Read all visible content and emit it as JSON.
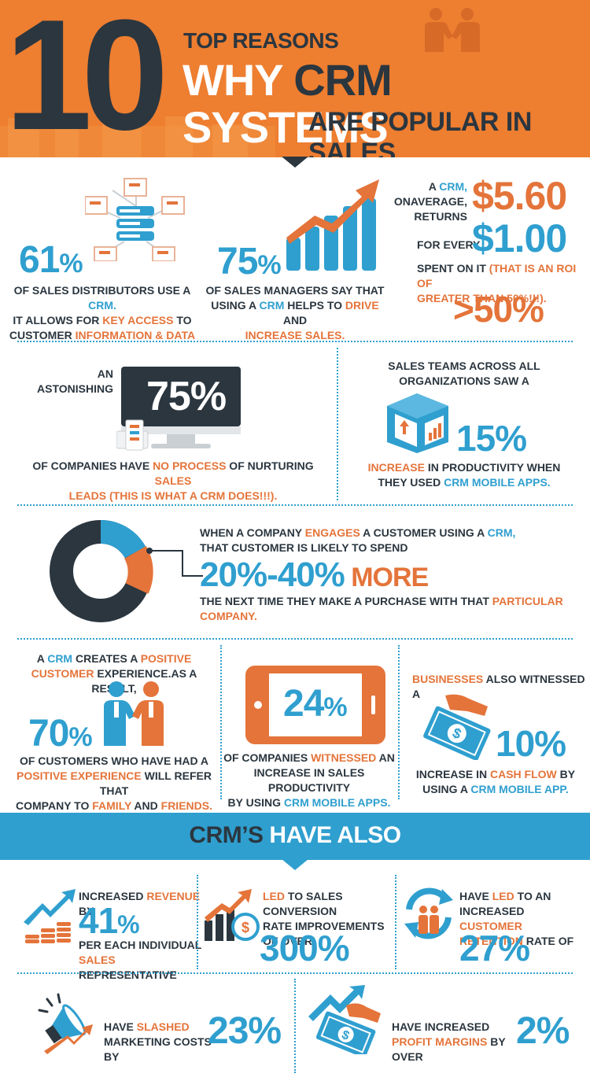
{
  "header": {
    "number": "10",
    "line1": "TOP REASONS",
    "line2a": "WHY ",
    "line2b": "CRM",
    "line2c": " SYSTEMS",
    "line3": "ARE POPULAR IN SALES"
  },
  "stat61": {
    "value": "61",
    "pct": "%",
    "l1a": "OF SALES DISTRIBUTORS USE A ",
    "l1b": "CRM.",
    "l2a": "IT ALLOWS FOR ",
    "l2b": "KEY ACCESS",
    "l2c": " TO",
    "l3a": "CUSTOMER ",
    "l3b": "INFORMATION & DATA"
  },
  "stat75a": {
    "value": "75",
    "pct": "%",
    "l1": "OF SALES MANAGERS SAY THAT",
    "l2a": "USING A ",
    "l2b": "CRM",
    "l2c": " HELPS TO ",
    "l2d": "DRIVE",
    "l2e": " AND",
    "l3": "INCREASE SALES."
  },
  "roi": {
    "l1a": "A ",
    "l1b": "CRM,",
    "l2": "ONAVERAGE,",
    "l3": "RETURNS",
    "amount1": "$5.60",
    "for_every": "FOR EVERY",
    "amount2": "$1.00",
    "l4a": "SPENT ON IT ",
    "l4b": "(THAT IS AN ROI OF",
    "l5": "GREATER THAN 50%!!!).",
    "big": ">50%"
  },
  "stat75b": {
    "l1": "AN",
    "l2": "ASTONISHING",
    "value": "75%",
    "l3a": "OF COMPANIES HAVE ",
    "l3b": "NO PROCESS",
    "l3c": " OF NURTURING ",
    "l3d": "SALES",
    "l4": "LEADS (THIS IS WHAT A CRM DOES!!!)."
  },
  "stat15": {
    "l1": "SALES TEAMS ACROSS ALL",
    "l2": "ORGANIZATIONS SAW A",
    "value": "15%",
    "l3a": "INCREASE",
    "l3b": " IN PRODUCTIVITY WHEN",
    "l4a": "THEY USED ",
    "l4b": "CRM MOBILE APPS."
  },
  "stat2040": {
    "l1a": "WHEN A COMPANY ",
    "l1b": "ENGAGES",
    "l1c": " A CUSTOMER USING A ",
    "l1d": "CRM,",
    "l2": "THAT CUSTOMER IS LIKELY TO SPEND",
    "value": "20%-40%",
    "more": " MORE",
    "l3a": "THE NEXT TIME THEY MAKE A PURCHASE WITH THAT ",
    "l3b": "PARTICULAR COMPANY."
  },
  "stat70": {
    "l1a": "A ",
    "l1b": "CRM",
    "l1c": " CREATES A ",
    "l1d": "POSITIVE",
    "l2a": "CUSTOMER",
    "l2b": " EXPERIENCE.AS A RESULT,",
    "value": "70",
    "pct": "%",
    "l3": "OF CUSTOMERS WHO HAVE HAD A",
    "l4a": "POSITIVE EXPERIENCE",
    "l4b": " WILL REFER THAT",
    "l5a": "COMPANY TO ",
    "l5b": "FAMILY",
    "l5c": " AND ",
    "l5d": "FRIENDS."
  },
  "stat24": {
    "value": "24",
    "pct": "%",
    "l1a": "OF COMPANIES ",
    "l1b": "WITNESSED",
    "l1c": " AN",
    "l2": "INCREASE IN SALES PRODUCTIVITY",
    "l3a": "BY USING ",
    "l3b": "CRM MOBILE APPS."
  },
  "stat10": {
    "l1a": "BUSINESSES",
    "l1b": " ALSO WITNESSED A",
    "value": "10%",
    "l2a": "INCREASE IN ",
    "l2b": "CASH FLOW",
    "l2c": " BY",
    "l3a": "USING A ",
    "l3b": "CRM MOBILE APP."
  },
  "banner": {
    "a": "CRM’S",
    "b": " HAVE ALSO"
  },
  "stat41": {
    "l1a": "INCREASED ",
    "l1b": "REVENUE",
    "l1c": " BY",
    "value": "41",
    "pct": "%",
    "l2": "PER EACH INDIVIDUAL",
    "l3a": "SALES",
    "l3b": " REPRESENTATIVE"
  },
  "stat300": {
    "l1a": "LED",
    "l1b": " TO SALES CONVERSION",
    "l2": "RATE IMPROVEMENTS",
    "l3": "OF OVER",
    "value": "300%"
  },
  "stat27": {
    "l1a": "HAVE ",
    "l1b": "LED",
    "l1c": " TO AN",
    "l2a": "INCREASED ",
    "l2b": "CUSTOMER",
    "l3a": "RETENTION",
    "l3b": " RATE OF",
    "value": "27%"
  },
  "stat23": {
    "l1a": "HAVE ",
    "l1b": "SLASHED",
    "l2": "MARKETING COSTS BY",
    "value": "23%"
  },
  "stat2": {
    "l1": "HAVE INCREASED",
    "l2a": "PROFIT MARGINS",
    "l2b": " BY OVER",
    "value": "2%"
  },
  "colors": {
    "orange": "#ee7e30",
    "blue": "#2f9fcf",
    "dark": "#2b363f"
  }
}
